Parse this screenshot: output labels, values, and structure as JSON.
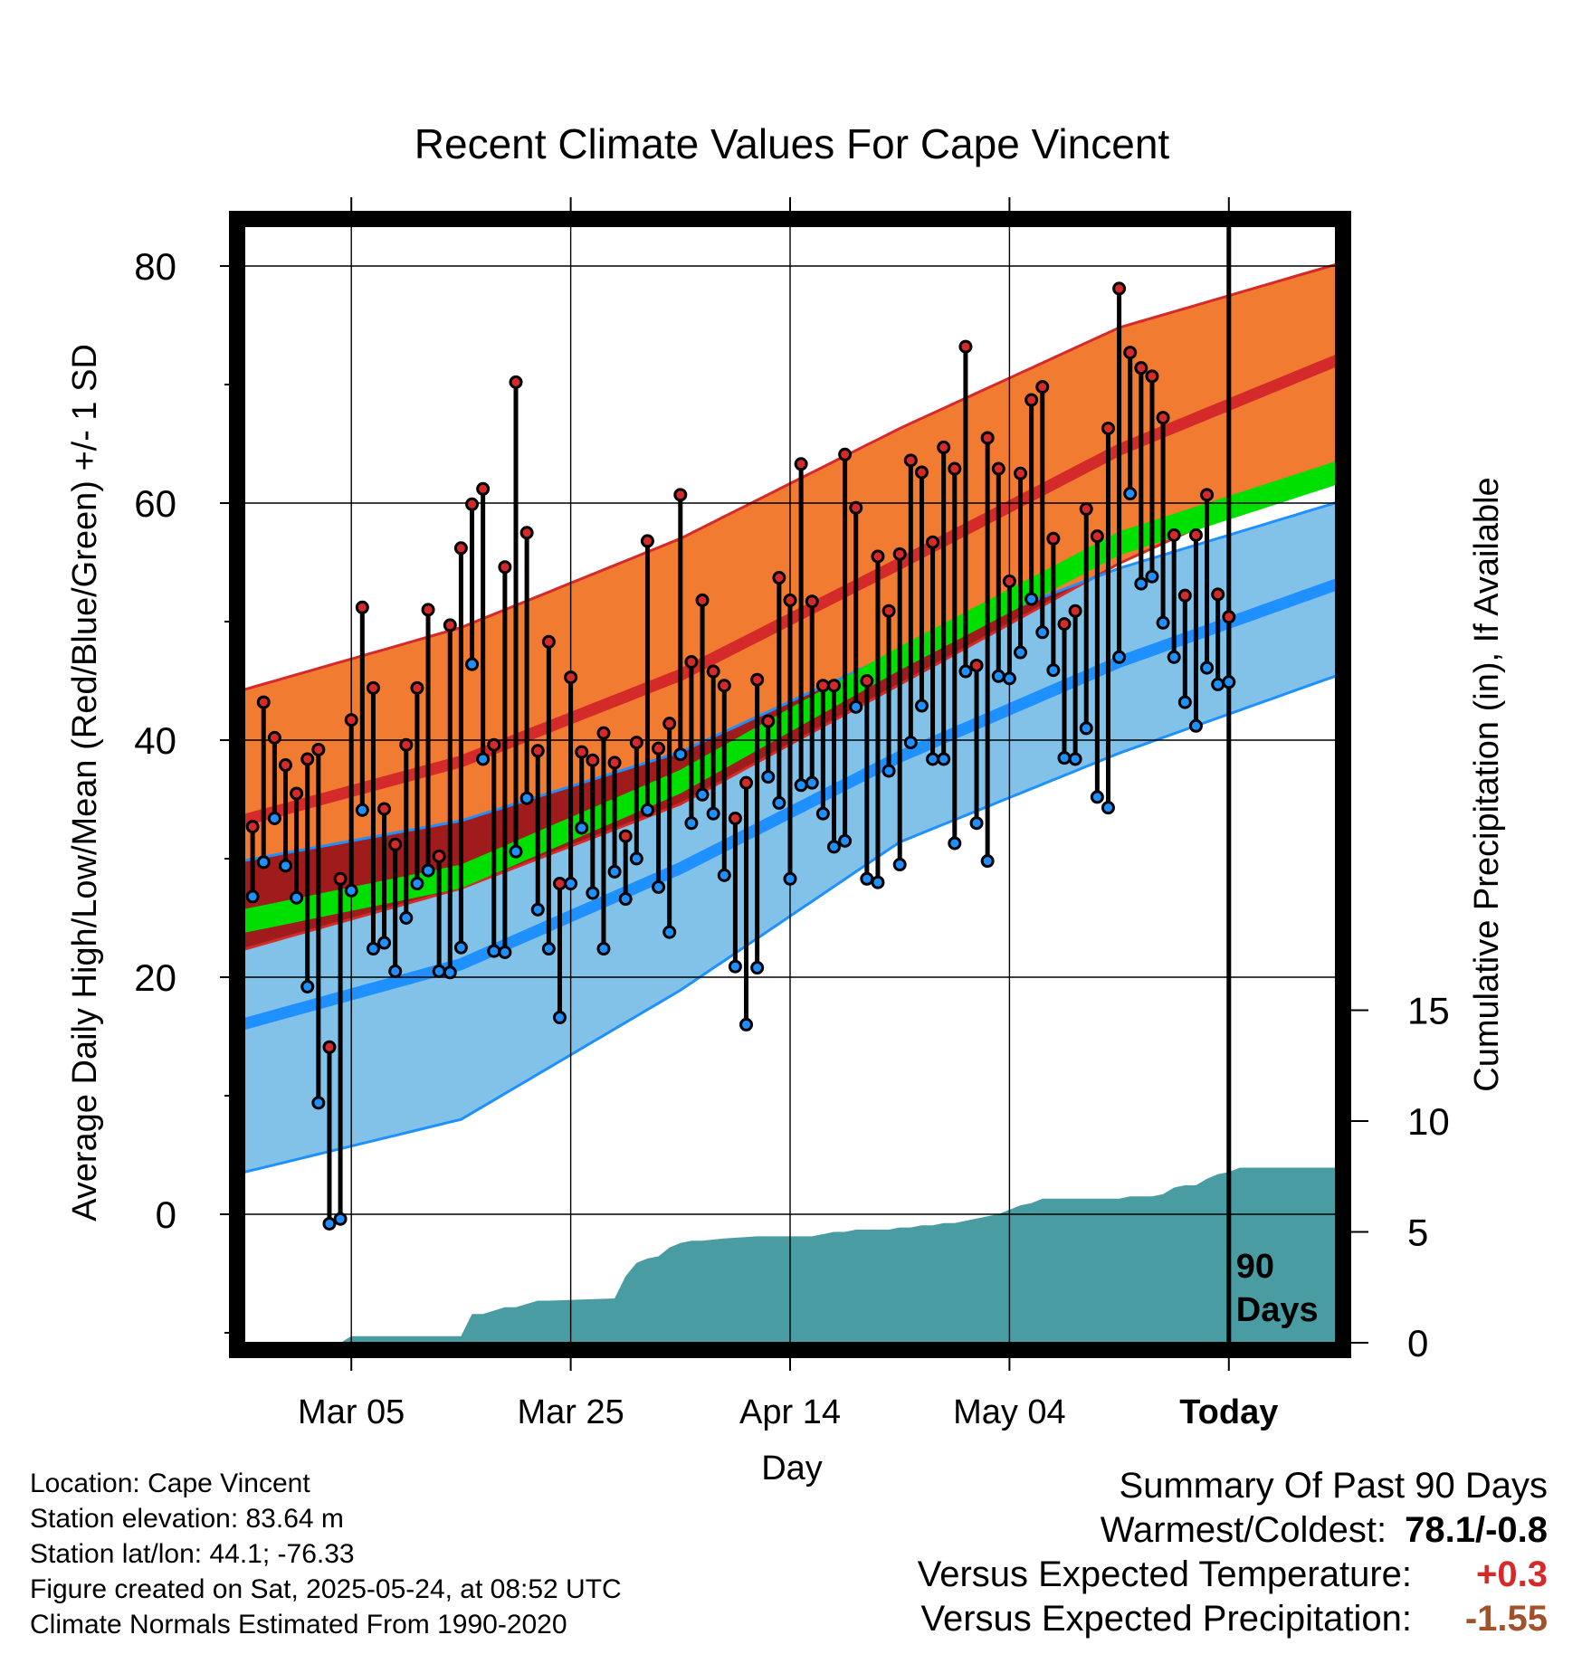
{
  "title": "Recent Climate Values For Cape Vincent",
  "footer": {
    "location": "Location: Cape Vincent",
    "elevation": "Station elevation: 83.64 m",
    "latlon": "Station lat/lon: 44.1; -76.33",
    "created": "Figure created on Sat, 2025-05-24, at 08:52 UTC",
    "normals": "Climate Normals Estimated From 1990-2020"
  },
  "summary": {
    "heading": "Summary Of Past 90 Days",
    "warmest_label": "Warmest/Coldest:",
    "warmest_value": "78.1/-0.8",
    "temp_label": "Versus Expected Temperature:",
    "temp_value": "+0.3",
    "precip_label": "Versus Expected Precipitation:",
    "precip_value": "-1.55"
  },
  "colors": {
    "high_band": "#f07b31",
    "high_mean": "#d42a2a",
    "low_band": "#82c2e8",
    "low_mean": "#1e90ff",
    "mean": "#00e000",
    "overlap": "#a01c1c",
    "precip": "#4a9ca3",
    "temp_positive": "#d42a2a",
    "precip_negative": "#a0522d"
  },
  "chart_data": {
    "type": "line",
    "title": "Recent Climate Values For Cape Vincent",
    "xlabel": "Day",
    "ylabel": "Average Daily High/Low/Mean (Red/Blue/Green) +/- 1 SD",
    "y2label": "Cumulative Precipitation (in), If Available",
    "x_ticks": [
      "Mar 05",
      "Mar 25",
      "Apr 14",
      "May 04",
      "Today"
    ],
    "ylim": [
      -10,
      85
    ],
    "y_ticks": [
      0,
      20,
      40,
      60,
      80
    ],
    "y2_ticks": [
      0,
      5,
      10,
      15
    ],
    "x_start": "2025-02-23",
    "today": "2025-05-24",
    "marker_label": "90 Days",
    "grid": true,
    "daily_high": [
      32.7,
      43.2,
      40.2,
      37.9,
      35.5,
      38.4,
      39.2,
      14.1,
      28.3,
      41.7,
      51.2,
      44.4,
      34.2,
      31.2,
      39.6,
      44.4,
      51.0,
      30.2,
      49.7,
      56.2,
      59.9,
      61.2,
      39.6,
      54.6,
      70.2,
      57.5,
      39.1,
      48.3,
      27.9,
      45.3,
      39.0,
      38.3,
      40.6,
      38.1,
      31.9,
      39.8,
      56.8,
      39.3,
      41.4,
      60.7,
      46.6,
      51.8,
      45.8,
      44.6,
      33.4,
      36.4,
      45.1,
      41.6,
      53.7,
      51.8,
      63.3,
      51.7,
      44.6,
      44.6,
      64.1,
      59.6,
      45.0,
      55.5,
      50.9,
      55.7,
      63.6,
      62.6,
      56.7,
      64.7,
      62.9,
      73.2,
      46.3,
      65.5,
      62.9,
      53.4,
      62.5,
      68.7,
      69.8,
      57.0,
      49.8,
      50.9,
      59.5,
      57.2,
      66.3,
      78.1,
      72.7,
      71.4,
      70.7,
      67.2,
      57.3,
      52.2,
      57.3,
      60.7,
      52.3,
      50.4
    ],
    "daily_low": [
      26.8,
      29.7,
      33.4,
      29.4,
      26.7,
      19.2,
      9.4,
      -0.8,
      -0.4,
      27.3,
      34.1,
      22.4,
      22.9,
      20.5,
      25.0,
      27.9,
      29.0,
      20.5,
      20.4,
      22.5,
      46.4,
      38.4,
      22.2,
      22.1,
      30.6,
      35.1,
      25.7,
      22.4,
      16.6,
      27.9,
      32.6,
      27.1,
      22.4,
      28.9,
      26.6,
      30.0,
      34.1,
      27.6,
      23.8,
      38.8,
      33.0,
      35.4,
      33.8,
      28.6,
      20.9,
      16.0,
      20.8,
      36.9,
      34.7,
      28.3,
      36.2,
      36.4,
      33.8,
      31.0,
      31.5,
      42.8,
      28.3,
      28.0,
      37.4,
      29.5,
      39.8,
      42.9,
      38.4,
      38.4,
      31.3,
      45.8,
      33.0,
      29.8,
      45.4,
      45.2,
      47.4,
      51.9,
      49.1,
      45.9,
      38.5,
      38.4,
      41.0,
      35.2,
      34.3,
      47.0,
      60.8,
      53.2,
      53.8,
      49.9,
      47.0,
      43.2,
      41.2,
      46.1,
      44.7,
      44.9
    ],
    "normal_high": {
      "x": [
        0,
        20,
        40,
        60,
        80,
        100
      ],
      "mean": [
        33.2,
        38.2,
        45.5,
        54.9,
        64.5,
        72.1
      ],
      "upper": [
        44.2,
        49.5,
        57.0,
        66.3,
        74.8,
        80.2
      ],
      "lower": [
        22.3,
        27.5,
        34.6,
        44.7,
        54.9,
        63.4
      ]
    },
    "normal_low": {
      "x": [
        0,
        20,
        40,
        60,
        80,
        100
      ],
      "mean": [
        16.0,
        21.1,
        29.2,
        38.6,
        46.6,
        53.2
      ],
      "upper": [
        29.8,
        33.2,
        39.0,
        47.5,
        54.5,
        60.1
      ],
      "lower": [
        3.5,
        8.0,
        18.9,
        31.4,
        38.9,
        45.5
      ]
    },
    "normal_mean": {
      "x": [
        0,
        20,
        40,
        60,
        80,
        100
      ],
      "lower": [
        23.7,
        27.5,
        35.5,
        45.9,
        55.6,
        61.6
      ],
      "upper": [
        25.7,
        29.5,
        37.5,
        47.9,
        57.6,
        63.6
      ]
    },
    "precip_cumulative": {
      "x": [
        0,
        9,
        10,
        20,
        21,
        22,
        24,
        25,
        27,
        28,
        34,
        35,
        36,
        37,
        38,
        39,
        40,
        41,
        42,
        44,
        47,
        52,
        53,
        54,
        55,
        56,
        58,
        59,
        60,
        61,
        62,
        63,
        64,
        65,
        66,
        67,
        68,
        69,
        70,
        71,
        72,
        73,
        74,
        75,
        76,
        77,
        78,
        79,
        80,
        81,
        82,
        83,
        84,
        85,
        86,
        87,
        88,
        89,
        90,
        91,
        95,
        100
      ],
      "y": [
        0,
        0,
        0.3,
        0.3,
        1.3,
        1.3,
        1.6,
        1.6,
        1.9,
        1.9,
        2.0,
        3.0,
        3.6,
        3.8,
        3.9,
        4.3,
        4.5,
        4.6,
        4.6,
        4.7,
        4.8,
        4.8,
        4.9,
        5.0,
        5.0,
        5.1,
        5.1,
        5.1,
        5.2,
        5.2,
        5.3,
        5.3,
        5.4,
        5.4,
        5.5,
        5.6,
        5.7,
        5.8,
        6.0,
        6.2,
        6.3,
        6.5,
        6.5,
        6.5,
        6.5,
        6.5,
        6.5,
        6.5,
        6.5,
        6.6,
        6.6,
        6.6,
        6.7,
        7.0,
        7.1,
        7.1,
        7.4,
        7.6,
        7.7,
        7.9,
        7.9,
        7.9
      ]
    }
  }
}
